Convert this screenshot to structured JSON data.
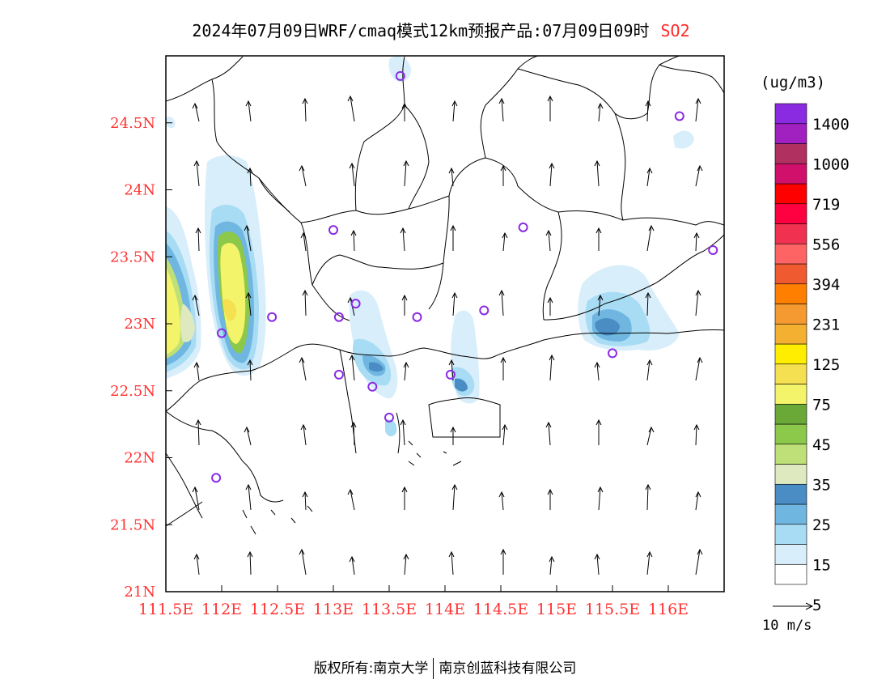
{
  "header": {
    "title": "2024年07月09日WRF/cmaq模式12km预报产品:07月09日09时",
    "pollutant": "SO2"
  },
  "map": {
    "lat_labels": [
      "24.5N",
      "24N",
      "23.5N",
      "23N",
      "22.5N",
      "22N",
      "21.5N",
      "21N"
    ],
    "lon_labels": [
      "111.5E",
      "112E",
      "112.5E",
      "113E",
      "113.5E",
      "114E",
      "114.5E",
      "115E",
      "115.5E",
      "116E"
    ],
    "lat_range": [
      21,
      25
    ],
    "lon_range": [
      111.5,
      116.5
    ],
    "label_color": "#ff3333",
    "station_color": "#8a2be2"
  },
  "legend": {
    "unit": "(ug/m3)",
    "labels": [
      "1400",
      "1000",
      "719",
      "556",
      "394",
      "231",
      "125",
      "75",
      "45",
      "35",
      "25",
      "15",
      "5"
    ],
    "colors": [
      "#ffffff",
      "#d8eefa",
      "#a8dcf4",
      "#6fb6e0",
      "#4a8cc4",
      "#dfe9c0",
      "#bfe078",
      "#8cc84a",
      "#6aa838",
      "#f4f46a",
      "#f4e050",
      "#ffee00",
      "#f4b030",
      "#f49a30",
      "#ff8000",
      "#f05a30",
      "#ff6464",
      "#f03250",
      "#ff0040",
      "#ff0000",
      "#d0106a",
      "#b03060",
      "#a020c0",
      "#8a2be2"
    ]
  },
  "wind": {
    "ref_label": "10 m/s"
  },
  "footer": {
    "copyright": "版权所有:南京大学",
    "company": "南京创蓝科技有限公司"
  }
}
